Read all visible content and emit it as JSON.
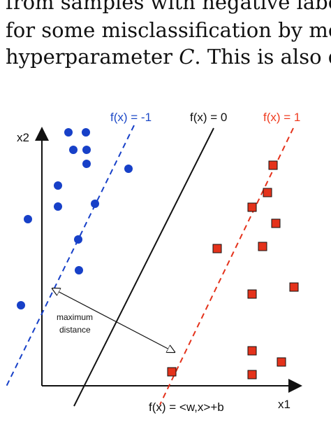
{
  "text": {
    "line1": "from samples with negative labels (",
    "line2": "for some misclassification by means",
    "line3_prefix": "hyperparameter ",
    "line3_symbol": "C",
    "line3_suffix": ". This is also dep"
  },
  "diagram": {
    "labels": {
      "negative_margin": "f(x) = -1",
      "decision_boundary": "f(x) = 0",
      "positive_margin": "f(x) = 1",
      "x2_axis": "x2",
      "x1_axis": "x1",
      "equation": "f(x) = <w,x>+b",
      "maximum": "maximum",
      "distance": "distance"
    },
    "colors": {
      "blue": "#1740c8",
      "red": "#e4321b",
      "axis": "#111111",
      "background": "#ffffff"
    }
  }
}
